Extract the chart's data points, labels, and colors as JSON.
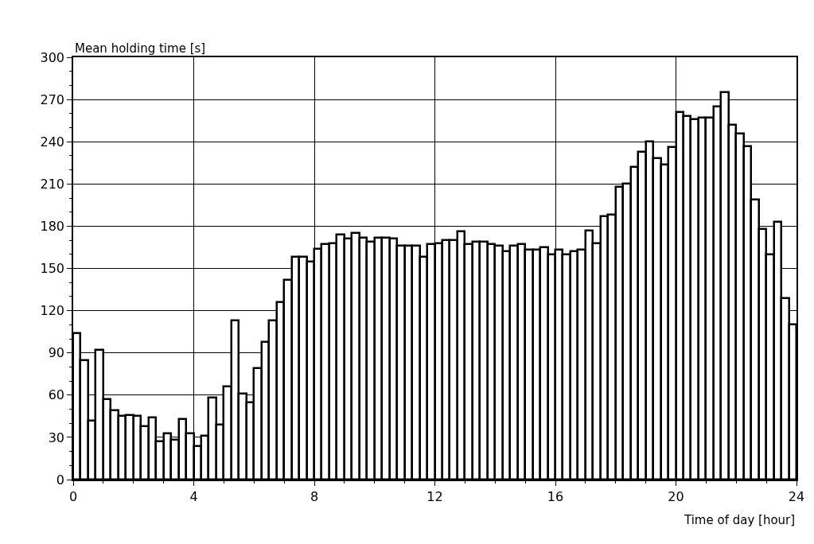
{
  "chart_data": {
    "type": "histogram",
    "xlabel": "Time of day [hour]",
    "ylabel": "Mean holding time [s]",
    "bins": [
      0,
      0.25,
      0.5,
      0.75,
      1,
      1.25,
      1.5,
      1.75,
      2,
      2.25,
      2.5,
      2.75,
      3,
      3.25,
      3.5,
      3.75,
      4,
      4.25,
      4.5,
      4.75,
      5,
      5.25,
      5.5,
      5.75,
      6,
      6.25,
      6.5,
      6.75,
      7,
      7.25,
      7.5,
      7.75,
      8,
      8.25,
      8.5,
      8.75,
      9,
      9.25,
      9.5,
      9.75,
      10,
      10.25,
      10.5,
      10.75,
      11,
      11.25,
      11.5,
      11.75,
      12,
      12.25,
      12.5,
      12.75,
      13,
      13.25,
      13.5,
      13.75,
      14,
      14.25,
      14.5,
      14.75,
      15,
      15.25,
      15.5,
      15.75,
      16,
      16.25,
      16.5,
      16.75,
      17,
      17.25,
      17.5,
      17.75,
      18,
      18.25,
      18.5,
      18.75,
      19,
      19.25,
      19.5,
      19.75,
      20,
      20.25,
      20.5,
      20.75,
      21,
      21.25,
      21.5,
      21.75,
      22,
      22.25,
      22.5,
      22.75,
      23,
      23.25,
      23.5,
      23.75,
      24
    ],
    "values": [
      104,
      85,
      42,
      92,
      57,
      49,
      45,
      46,
      45,
      38,
      44,
      27,
      33,
      28,
      43,
      33,
      24,
      31,
      58,
      39,
      66,
      113,
      61,
      55,
      79,
      98,
      113,
      126,
      142,
      158,
      158,
      155,
      164,
      167,
      168,
      174,
      171,
      175,
      172,
      169,
      172,
      172,
      171,
      166,
      166,
      166,
      158,
      167,
      168,
      170,
      170,
      176,
      167,
      169,
      169,
      167,
      166,
      162,
      166,
      167,
      163,
      163,
      165,
      160,
      163,
      160,
      162,
      163,
      177,
      168,
      187,
      188,
      208,
      210,
      222,
      233,
      240,
      228,
      224,
      236,
      261,
      258,
      256,
      257,
      257,
      265,
      275,
      252,
      246,
      237,
      199,
      178,
      160,
      183,
      129,
      110
    ],
    "color": "#ffffff",
    "xlim": [
      0,
      24
    ],
    "xticks": [
      0,
      4,
      8,
      12,
      16,
      20,
      24
    ],
    "ylim": [
      0,
      300
    ],
    "yticks": [
      0,
      30,
      60,
      90,
      120,
      150,
      180,
      210,
      240,
      270,
      300
    ],
    "grid": true
  }
}
